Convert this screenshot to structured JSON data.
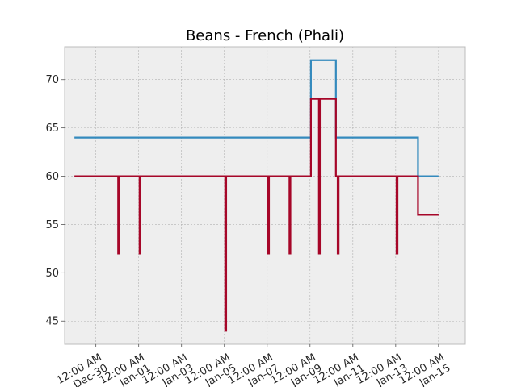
{
  "chart_data": {
    "type": "line",
    "title": "Beans - French (Phali)",
    "xlabel": "",
    "ylabel": "",
    "x_ticks": [
      {
        "date": "2023-12-30",
        "label": [
          "12:00 AM",
          "Dec-30"
        ]
      },
      {
        "date": "2024-01-01",
        "label": [
          "12:00 AM",
          "Jan-01"
        ]
      },
      {
        "date": "2024-01-03",
        "label": [
          "12:00 AM",
          "Jan-03"
        ]
      },
      {
        "date": "2024-01-05",
        "label": [
          "12:00 AM",
          "Jan-05"
        ]
      },
      {
        "date": "2024-01-07",
        "label": [
          "12:00 AM",
          "Jan-07"
        ]
      },
      {
        "date": "2024-01-09",
        "label": [
          "12:00 AM",
          "Jan-09"
        ]
      },
      {
        "date": "2024-01-11",
        "label": [
          "12:00 AM",
          "Jan-11"
        ]
      },
      {
        "date": "2024-01-13",
        "label": [
          "12:00 AM",
          "Jan-13"
        ]
      },
      {
        "date": "2024-01-15",
        "label": [
          "12:00 AM",
          "Jan-15"
        ]
      }
    ],
    "y_ticks": [
      45,
      50,
      55,
      60,
      65,
      70
    ],
    "xlim": [
      "2023-12-28T13:00",
      "2024-01-16T06:00"
    ],
    "ylim": [
      42.6,
      73.4
    ],
    "grid": true,
    "legend": "none",
    "series": [
      {
        "color": "#348abd",
        "step": "post",
        "points": [
          [
            "2023-12-29",
            64
          ],
          [
            "2024-01-09",
            64
          ],
          [
            "2024-01-09T01:00",
            72
          ],
          [
            "2024-01-10T04:00",
            72
          ],
          [
            "2024-01-10T05:00",
            64
          ],
          [
            "2024-01-14",
            64
          ],
          [
            "2024-01-14T01:00",
            60
          ],
          [
            "2024-01-15",
            60
          ]
        ]
      },
      {
        "color": "#a60628",
        "step": "post",
        "points": [
          [
            "2023-12-29",
            60
          ],
          [
            "2023-12-31T01:00",
            52
          ],
          [
            "2023-12-31T02:00",
            60
          ],
          [
            "2024-01-01T01:00",
            52
          ],
          [
            "2024-01-01T02:00",
            60
          ],
          [
            "2024-01-05T01:00",
            44
          ],
          [
            "2024-01-05T02:00",
            60
          ],
          [
            "2024-01-07T01:00",
            52
          ],
          [
            "2024-01-07T02:00",
            60
          ],
          [
            "2024-01-08T01:00",
            52
          ],
          [
            "2024-01-08T02:00",
            60
          ],
          [
            "2024-01-09",
            60
          ],
          [
            "2024-01-09T01:00",
            68
          ],
          [
            "2024-01-09T10:00",
            52
          ],
          [
            "2024-01-09T11:00",
            68
          ],
          [
            "2024-01-10T04:00",
            68
          ],
          [
            "2024-01-10T05:00",
            60
          ],
          [
            "2024-01-10T07:00",
            52
          ],
          [
            "2024-01-10T08:00",
            60
          ],
          [
            "2024-01-13T01:00",
            52
          ],
          [
            "2024-01-13T02:00",
            60
          ],
          [
            "2024-01-14",
            60
          ],
          [
            "2024-01-14T01:00",
            56
          ],
          [
            "2024-01-15",
            56
          ]
        ]
      }
    ]
  }
}
